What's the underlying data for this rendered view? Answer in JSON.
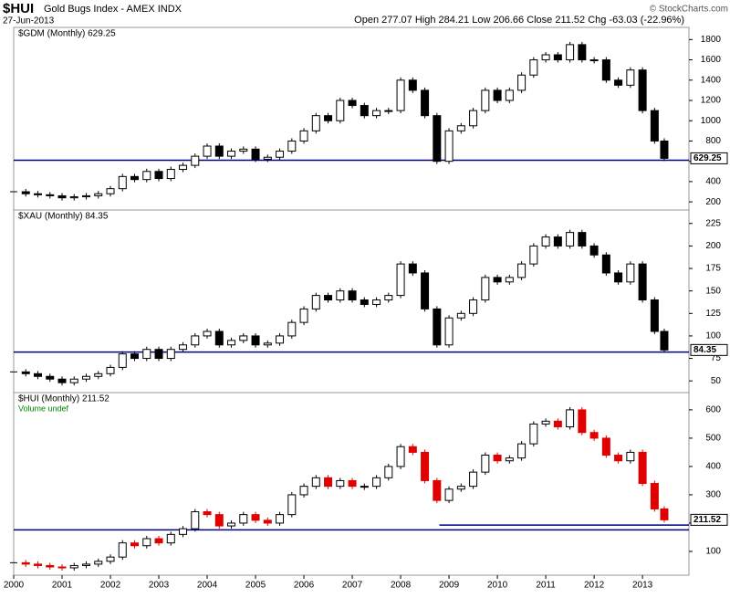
{
  "header": {
    "symbol": "$HUI",
    "name": "Gold Bugs Index - AMEX INDX",
    "date": "27-Jun-2013",
    "quote": "Open 277.07 High 284.21 Low 206.66 Close 211.52 Chg -63.03 (-22.96%)",
    "credit": "© StockCharts.com"
  },
  "chart_data": [
    {
      "type": "candlestick",
      "label": "$GDM (Monthly) 629.25",
      "color": "#000000",
      "up_color": "#ffffff",
      "down_color": "#000000",
      "line_color": "#000080",
      "x": [
        2000,
        2000.25,
        2000.5,
        2000.75,
        2001,
        2001.25,
        2001.5,
        2001.75,
        2002,
        2002.25,
        2002.5,
        2002.75,
        2003,
        2003.25,
        2003.5,
        2003.75,
        2004,
        2004.25,
        2004.5,
        2004.75,
        2005,
        2005.25,
        2005.5,
        2005.75,
        2006,
        2006.25,
        2006.5,
        2006.75,
        2007,
        2007.25,
        2007.5,
        2007.75,
        2008,
        2008.25,
        2008.5,
        2008.75,
        2009,
        2009.25,
        2009.5,
        2009.75,
        2010,
        2010.25,
        2010.5,
        2010.75,
        2011,
        2011.25,
        2011.5,
        2011.75,
        2012,
        2012.25,
        2012.5,
        2012.75,
        2013,
        2013.25,
        2013.45
      ],
      "values": [
        300,
        280,
        270,
        260,
        240,
        250,
        260,
        280,
        330,
        450,
        420,
        500,
        430,
        520,
        560,
        650,
        750,
        650,
        700,
        720,
        620,
        640,
        700,
        800,
        900,
        1050,
        1000,
        1200,
        1150,
        1050,
        1100,
        1100,
        1400,
        1300,
        1050,
        600,
        900,
        950,
        1100,
        1300,
        1200,
        1300,
        1450,
        1600,
        1650,
        1600,
        1750,
        1600,
        1600,
        1400,
        1350,
        1500,
        1100,
        800,
        629.25
      ],
      "xlim": [
        2000,
        2013.96
      ],
      "ylim": [
        120,
        1920
      ],
      "yticks": [
        200,
        400,
        600,
        800,
        1000,
        1200,
        1400,
        1600,
        1800
      ],
      "hlines": [
        {
          "value": 610
        }
      ]
    },
    {
      "type": "candlestick",
      "label": "$XAU (Monthly) 84.35",
      "color": "#000000",
      "up_color": "#ffffff",
      "down_color": "#000000",
      "line_color": "#000080",
      "x": [
        2000,
        2000.25,
        2000.5,
        2000.75,
        2001,
        2001.25,
        2001.5,
        2001.75,
        2002,
        2002.25,
        2002.5,
        2002.75,
        2003,
        2003.25,
        2003.5,
        2003.75,
        2004,
        2004.25,
        2004.5,
        2004.75,
        2005,
        2005.25,
        2005.5,
        2005.75,
        2006,
        2006.25,
        2006.5,
        2006.75,
        2007,
        2007.25,
        2007.5,
        2007.75,
        2008,
        2008.25,
        2008.5,
        2008.75,
        2009,
        2009.25,
        2009.5,
        2009.75,
        2010,
        2010.25,
        2010.5,
        2010.75,
        2011,
        2011.25,
        2011.5,
        2011.75,
        2012,
        2012.25,
        2012.5,
        2012.75,
        2013,
        2013.25,
        2013.45
      ],
      "values": [
        60,
        58,
        55,
        52,
        48,
        52,
        55,
        58,
        65,
        80,
        75,
        85,
        75,
        85,
        90,
        100,
        105,
        90,
        95,
        100,
        90,
        92,
        100,
        115,
        130,
        145,
        140,
        150,
        140,
        135,
        140,
        145,
        180,
        170,
        130,
        90,
        120,
        125,
        140,
        165,
        160,
        165,
        180,
        200,
        210,
        200,
        215,
        200,
        190,
        170,
        160,
        180,
        140,
        105,
        84.35
      ],
      "xlim": [
        2000,
        2013.96
      ],
      "ylim": [
        37,
        240
      ],
      "yticks": [
        50,
        75,
        100,
        125,
        150,
        175,
        200,
        225
      ],
      "hlines": [
        {
          "value": 82
        }
      ]
    },
    {
      "type": "candlestick",
      "label": "$HUI (Monthly) 211.52",
      "sublabel": "Volume undef",
      "color": "#000000",
      "up_color": "#ffffff",
      "down_color": "#e00000",
      "line_color": "#000080",
      "x": [
        2000,
        2000.25,
        2000.5,
        2000.75,
        2001,
        2001.25,
        2001.5,
        2001.75,
        2002,
        2002.25,
        2002.5,
        2002.75,
        2003,
        2003.25,
        2003.5,
        2003.75,
        2004,
        2004.25,
        2004.5,
        2004.75,
        2005,
        2005.25,
        2005.5,
        2005.75,
        2006,
        2006.25,
        2006.5,
        2006.75,
        2007,
        2007.25,
        2007.5,
        2007.75,
        2008,
        2008.25,
        2008.5,
        2008.75,
        2009,
        2009.25,
        2009.5,
        2009.75,
        2010,
        2010.25,
        2010.5,
        2010.75,
        2011,
        2011.25,
        2011.5,
        2011.75,
        2012,
        2012.25,
        2012.5,
        2012.75,
        2013,
        2013.25,
        2013.45
      ],
      "values": [
        60,
        55,
        50,
        45,
        42,
        50,
        55,
        65,
        80,
        130,
        120,
        145,
        130,
        160,
        180,
        240,
        230,
        190,
        200,
        230,
        210,
        200,
        230,
        300,
        330,
        360,
        330,
        350,
        330,
        330,
        360,
        400,
        470,
        450,
        350,
        280,
        320,
        330,
        380,
        440,
        420,
        430,
        480,
        550,
        560,
        540,
        600,
        520,
        500,
        440,
        420,
        450,
        340,
        250,
        211.52
      ],
      "xlim": [
        2000,
        2013.96
      ],
      "ylim": [
        16,
        661
      ],
      "yticks": [
        100,
        200,
        300,
        400,
        500,
        600
      ],
      "xticks": [
        2000,
        2001,
        2002,
        2003,
        2004,
        2005,
        2006,
        2007,
        2008,
        2009,
        2010,
        2011,
        2012,
        2013
      ],
      "hlines": [
        {
          "value": 176
        },
        {
          "value": 193,
          "from": 2008.8
        }
      ]
    }
  ]
}
